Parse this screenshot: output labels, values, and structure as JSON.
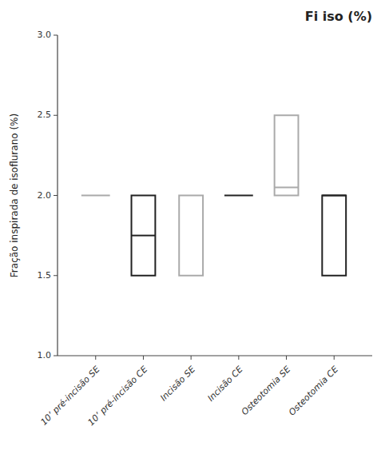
{
  "chart_data": {
    "type": "box",
    "title": "Fi iso (%)",
    "ylabel": "Fração inspirada de isoflurano (%)",
    "categories": [
      "10’ pré-incisão SE",
      "10’ pré-incisão CE",
      "Incisão SE",
      "Incisão CE",
      "Osteotomia SE",
      "Osteotomia CE"
    ],
    "median": [
      2.0,
      1.75,
      null,
      2.0,
      2.05,
      2.0
    ],
    "q1": [
      null,
      1.5,
      1.5,
      null,
      2.0,
      1.5
    ],
    "q3": [
      null,
      2.0,
      2.0,
      null,
      2.5,
      2.0
    ],
    "colors": [
      "#aaaaaa",
      "#222222",
      "#aaaaaa",
      "#222222",
      "#aaaaaa",
      "#222222"
    ],
    "ylim": [
      1.0,
      3.0
    ],
    "yticks": [
      {
        "value": 1.0,
        "label": "1.0"
      },
      {
        "value": 1.5,
        "label": "1.5"
      },
      {
        "value": 2.0,
        "label": "2.0"
      },
      {
        "value": 2.5,
        "label": "2.5"
      },
      {
        "value": 3.0,
        "label": "3.0"
      }
    ]
  }
}
